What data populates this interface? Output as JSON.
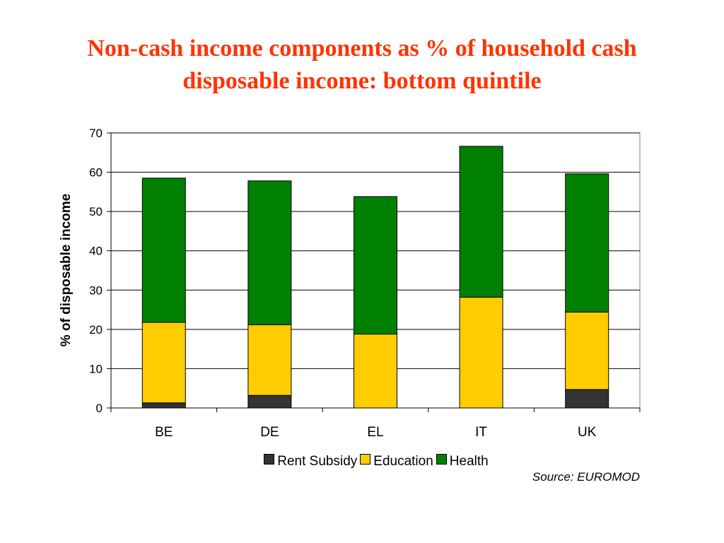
{
  "title_line1": "Non-cash income components as % of household cash",
  "title_line2": "disposable income: bottom quintile",
  "source": "Source: EUROMOD",
  "chart_data": {
    "type": "bar",
    "stacked": true,
    "categories": [
      "BE",
      "DE",
      "EL",
      "IT",
      "UK"
    ],
    "series": [
      {
        "name": "Rent Subsidy",
        "color": "#333333",
        "values": [
          1.3,
          3.2,
          0,
          0,
          4.7
        ]
      },
      {
        "name": "Education",
        "color": "#ffcc00",
        "values": [
          20.5,
          18.0,
          18.8,
          28.2,
          19.7
        ]
      },
      {
        "name": "Health",
        "color": "#008000",
        "values": [
          36.7,
          36.6,
          35.0,
          38.4,
          35.2
        ]
      }
    ],
    "ylabel": "% of disposable income",
    "ylim": [
      0,
      70
    ],
    "yticks": [
      0,
      10,
      20,
      30,
      40,
      50,
      60,
      70
    ],
    "grid": true,
    "legend": "bottom"
  }
}
